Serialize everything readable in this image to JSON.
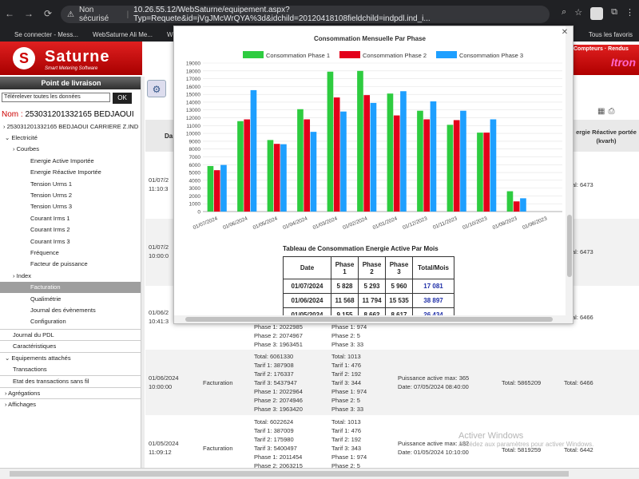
{
  "browser": {
    "security_label": "Non sécurisé",
    "url": "10.26.55.12/WebSaturne/equipement.aspx?Typ=Requete&id=jVgJMcWrQYA%3d&idchild=20120418108fieldchild=indpdl.ind_i...",
    "bookmarks": [
      "Se connecter - Mess...",
      "WebSaturne Ali Me...",
      "W"
    ],
    "bookmarks_right": "Tous les favoris"
  },
  "brand": {
    "name": "Saturne",
    "tagline": "Smart Metering Software"
  },
  "left_panel": {
    "section_title": "Point de livraison",
    "select_value": "Télérelever toutes les données",
    "ok_label": "OK",
    "nom_label": "Nom :",
    "nom_value": "253031201332165 BEDJAOUI",
    "tree": [
      "253031201332165 BEDJAOUI CARRIERE Z.IND",
      "Electricité",
      "Courbes",
      "Energie Active Importée",
      "Energie Réactive Importée",
      "Tension Urms 1",
      "Tension Urms 2",
      "Tension Urms 3",
      "Courant Irms 1",
      "Courant Irms 2",
      "Courant Irms 3",
      "Fréquence",
      "Facteur de puissance",
      "Index",
      "Facturation",
      "Qualimétrie",
      "Journal des évènements",
      "Configuration",
      "Journal du PDL",
      "Caractéristiques",
      "Equipements attachés",
      "Transactions",
      "Etat des transactions sans fil",
      "Agrégations",
      "Affichages"
    ]
  },
  "header_strip": {
    "text": "Compteurs · Rendus",
    "brand": "Itron"
  },
  "grid": {
    "col_date": "Da",
    "col_reactive": "ergie Réactive portée (kvarh)",
    "rows": [
      {
        "date": "01/07/2",
        "time": "11:10:3",
        "reactive": "Total: 6473"
      },
      {
        "date": "01/07/2",
        "time": "10:00:0",
        "reactive": "Total: 6473"
      },
      {
        "date": "01/06/2",
        "time": "10:41:3",
        "reactive": "Total: 6466",
        "phases_a": [
          "Phase 1: 2022985",
          "Phase 2: 2074967",
          "Phase 3: 1963451"
        ],
        "phases_b": [
          "Phase 1: 974",
          "Phase 2: 5",
          "Phase 3: 33"
        ]
      },
      {
        "date": "01/06/2024",
        "time": "10:00:00",
        "type": "Facturation",
        "col_a": [
          "Total: 6061330",
          "Tarif 1: 387908",
          "Tarif 2: 176337",
          "Tarif 3: 5437947",
          "Phase 1: 2022964",
          "Phase 2: 2074946",
          "Phase 3: 1963420"
        ],
        "col_b": [
          "Total: 1013",
          "Tarif 1: 476",
          "Tarif 2: 192",
          "Tarif 3: 344",
          "Phase 1: 974",
          "Phase 2: 5",
          "Phase 3: 33"
        ],
        "puissance": "Puissance active max: 365",
        "pdate": "Date: 07/05/2024 08:40:00",
        "total_active": "Total: 5865209",
        "reactive": "Total: 6466"
      },
      {
        "date": "01/05/2024",
        "time": "11:09:12",
        "type": "Facturation",
        "col_a": [
          "Total: 6022624",
          "Tarif 1: 387009",
          "Tarif 2: 175980",
          "Tarif 3: 5400497",
          "Phase 1: 2011454",
          "Phase 2: 2063215"
        ],
        "col_b": [
          "Total: 1013",
          "Tarif 1: 476",
          "Tarif 2: 192",
          "Tarif 3: 343",
          "Phase 1: 974",
          "Phase 2: 5"
        ],
        "puissance": "Puissance active max: 182",
        "pdate": "Date: 01/05/2024 10:10:00",
        "total_active": "Total: 5819259",
        "reactive": "Total: 6442"
      }
    ]
  },
  "watermark": {
    "title": "Activer Windows",
    "sub": "Accédez aux paramètres pour activer Windows."
  },
  "colors": {
    "phase1": "#2ecc40",
    "phase2": "#e3001b",
    "phase3": "#1e9fff",
    "brand_red": "#d10000"
  },
  "chart_data": {
    "type": "bar",
    "title": "Consommation Mensuelle Par Phase",
    "xlabel": "",
    "ylabel": "",
    "ylim": [
      0,
      19000
    ],
    "yticks": [
      0,
      1000,
      2000,
      3000,
      4000,
      5000,
      6000,
      7000,
      8000,
      9000,
      10000,
      11000,
      12000,
      13000,
      14000,
      15000,
      16000,
      17000,
      18000,
      19000
    ],
    "categories": [
      "01/07/2024",
      "01/06/2024",
      "01/05/2024",
      "01/04/2024",
      "01/03/2024",
      "01/02/2024",
      "01/01/2024",
      "01/12/2023",
      "01/11/2023",
      "01/10/2023",
      "01/09/2023",
      "01/08/2023"
    ],
    "series": [
      {
        "name": "Consommation Phase 1",
        "values": [
          5828,
          11568,
          9155,
          13100,
          17900,
          18000,
          15100,
          12900,
          11100,
          10100,
          2600,
          0
        ]
      },
      {
        "name": "Consommation Phase 2",
        "values": [
          5293,
          11794,
          8662,
          11800,
          14600,
          14900,
          12300,
          11800,
          11700,
          10100,
          1300,
          0
        ]
      },
      {
        "name": "Consommation Phase 3",
        "values": [
          5960,
          15535,
          8617,
          10200,
          12800,
          13900,
          15400,
          14100,
          12900,
          11800,
          1700,
          0
        ]
      }
    ],
    "legend": "top",
    "grid": true
  },
  "table": {
    "title": "Tableau de Consommation Energie Active Par Mois",
    "headers": [
      "Date",
      "Phase 1",
      "Phase 2",
      "Phase 3",
      "Total/Mois"
    ],
    "rows": [
      [
        "01/07/2024",
        "5 828",
        "5 293",
        "5 960",
        "17 081"
      ],
      [
        "01/06/2024",
        "11 568",
        "11 794",
        "15 535",
        "38 897"
      ],
      [
        "01/05/2024",
        "9 155",
        "8 662",
        "8 617",
        "26 434"
      ]
    ]
  }
}
